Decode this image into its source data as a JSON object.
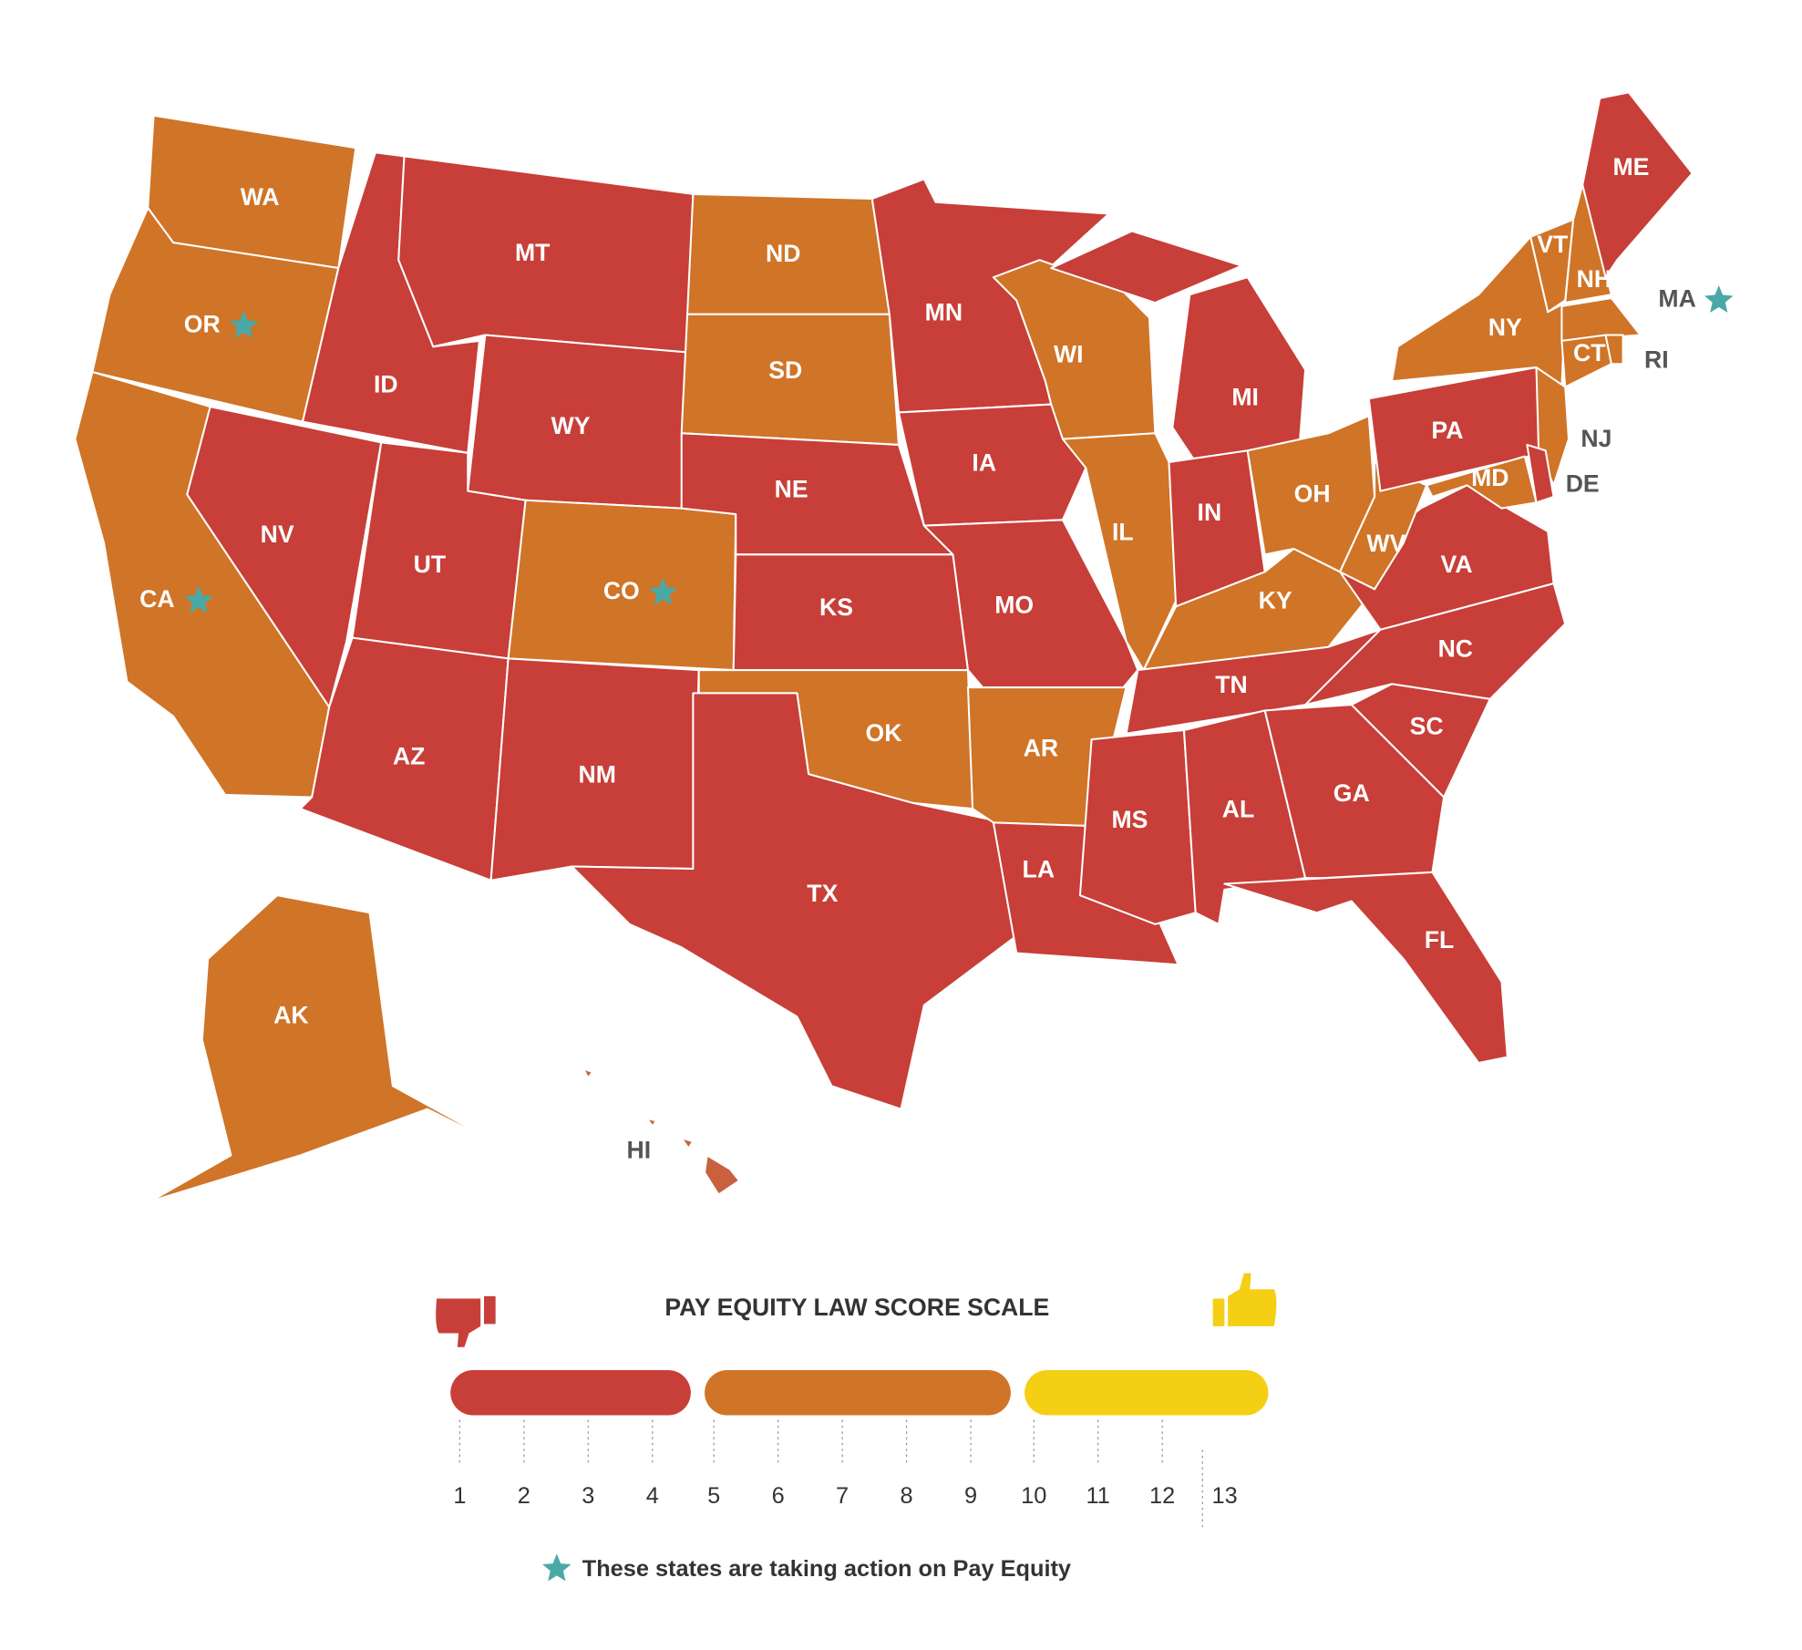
{
  "map": {
    "states": [
      {
        "label": "WA",
        "color": "#d07428",
        "star": false
      },
      {
        "label": "OR",
        "color": "#d07428",
        "star": true
      },
      {
        "label": "CA",
        "color": "#d07428",
        "star": true
      },
      {
        "label": "NV",
        "color": "#c73f38",
        "star": false
      },
      {
        "label": "ID",
        "color": "#c73f38",
        "star": false
      },
      {
        "label": "MT",
        "color": "#c73f38",
        "star": false
      },
      {
        "label": "WY",
        "color": "#c73f38",
        "star": false
      },
      {
        "label": "UT",
        "color": "#c73f38",
        "star": false
      },
      {
        "label": "CO",
        "color": "#d07428",
        "star": true
      },
      {
        "label": "AZ",
        "color": "#c73f38",
        "star": false
      },
      {
        "label": "NM",
        "color": "#c73f38",
        "star": false
      },
      {
        "label": "ND",
        "color": "#d07428",
        "star": false
      },
      {
        "label": "SD",
        "color": "#d07428",
        "star": false
      },
      {
        "label": "NE",
        "color": "#c73f38",
        "star": false
      },
      {
        "label": "KS",
        "color": "#c73f38",
        "star": false
      },
      {
        "label": "OK",
        "color": "#d07428",
        "star": false
      },
      {
        "label": "TX",
        "color": "#c73f38",
        "star": false
      },
      {
        "label": "MN",
        "color": "#c73f38",
        "star": false
      },
      {
        "label": "IA",
        "color": "#c73f38",
        "star": false
      },
      {
        "label": "MO",
        "color": "#c73f38",
        "star": false
      },
      {
        "label": "AR",
        "color": "#d07428",
        "star": false
      },
      {
        "label": "LA",
        "color": "#c73f38",
        "star": false
      },
      {
        "label": "WI",
        "color": "#d07428",
        "star": false
      },
      {
        "label": "IL",
        "color": "#d07428",
        "star": false
      },
      {
        "label": "MI",
        "color": "#c73f38",
        "star": false
      },
      {
        "label": "IN",
        "color": "#c73f38",
        "star": false
      },
      {
        "label": "OH",
        "color": "#d07428",
        "star": false
      },
      {
        "label": "KY",
        "color": "#d07428",
        "star": false
      },
      {
        "label": "TN",
        "color": "#c73f38",
        "star": false
      },
      {
        "label": "MS",
        "color": "#c73f38",
        "star": false
      },
      {
        "label": "AL",
        "color": "#c73f38",
        "star": false
      },
      {
        "label": "GA",
        "color": "#c73f38",
        "star": false
      },
      {
        "label": "FL",
        "color": "#c73f38",
        "star": false
      },
      {
        "label": "SC",
        "color": "#c73f38",
        "star": false
      },
      {
        "label": "NC",
        "color": "#c73f38",
        "star": false
      },
      {
        "label": "VA",
        "color": "#c73f38",
        "star": false
      },
      {
        "label": "WV",
        "color": "#d07428",
        "star": false
      },
      {
        "label": "PA",
        "color": "#c73f38",
        "star": false
      },
      {
        "label": "NY",
        "color": "#d07428",
        "star": false
      },
      {
        "label": "VT",
        "color": "#d07428",
        "star": false
      },
      {
        "label": "NH",
        "color": "#d07428",
        "star": false
      },
      {
        "label": "ME",
        "color": "#c73f38",
        "star": false
      },
      {
        "label": "MA",
        "color": "#d07428",
        "star": true
      },
      {
        "label": "CT",
        "color": "#d07428",
        "star": false
      },
      {
        "label": "RI",
        "color": "#d07428",
        "star": false
      },
      {
        "label": "NJ",
        "color": "#d07428",
        "star": false
      },
      {
        "label": "DE",
        "color": "#c73f38",
        "star": false
      },
      {
        "label": "MD",
        "color": "#d07428",
        "star": false
      },
      {
        "label": "AK",
        "color": "#d07428",
        "star": false
      },
      {
        "label": "HI",
        "color": "#c9613f",
        "star": false
      }
    ]
  },
  "scale": {
    "title": "PAY EQUITY LAW SCORE SCALE",
    "bands": [
      {
        "color": "#c73f38",
        "ticks": [
          1,
          2,
          3,
          4
        ]
      },
      {
        "color": "#d07428",
        "ticks": [
          5,
          6,
          7,
          8,
          9
        ]
      },
      {
        "color": "#f4cf13",
        "ticks": [
          10,
          11,
          12
        ]
      }
    ],
    "extra_tick": 13
  },
  "note": "These states are taking action on Pay Equity",
  "star_color": "#4aa9a6"
}
